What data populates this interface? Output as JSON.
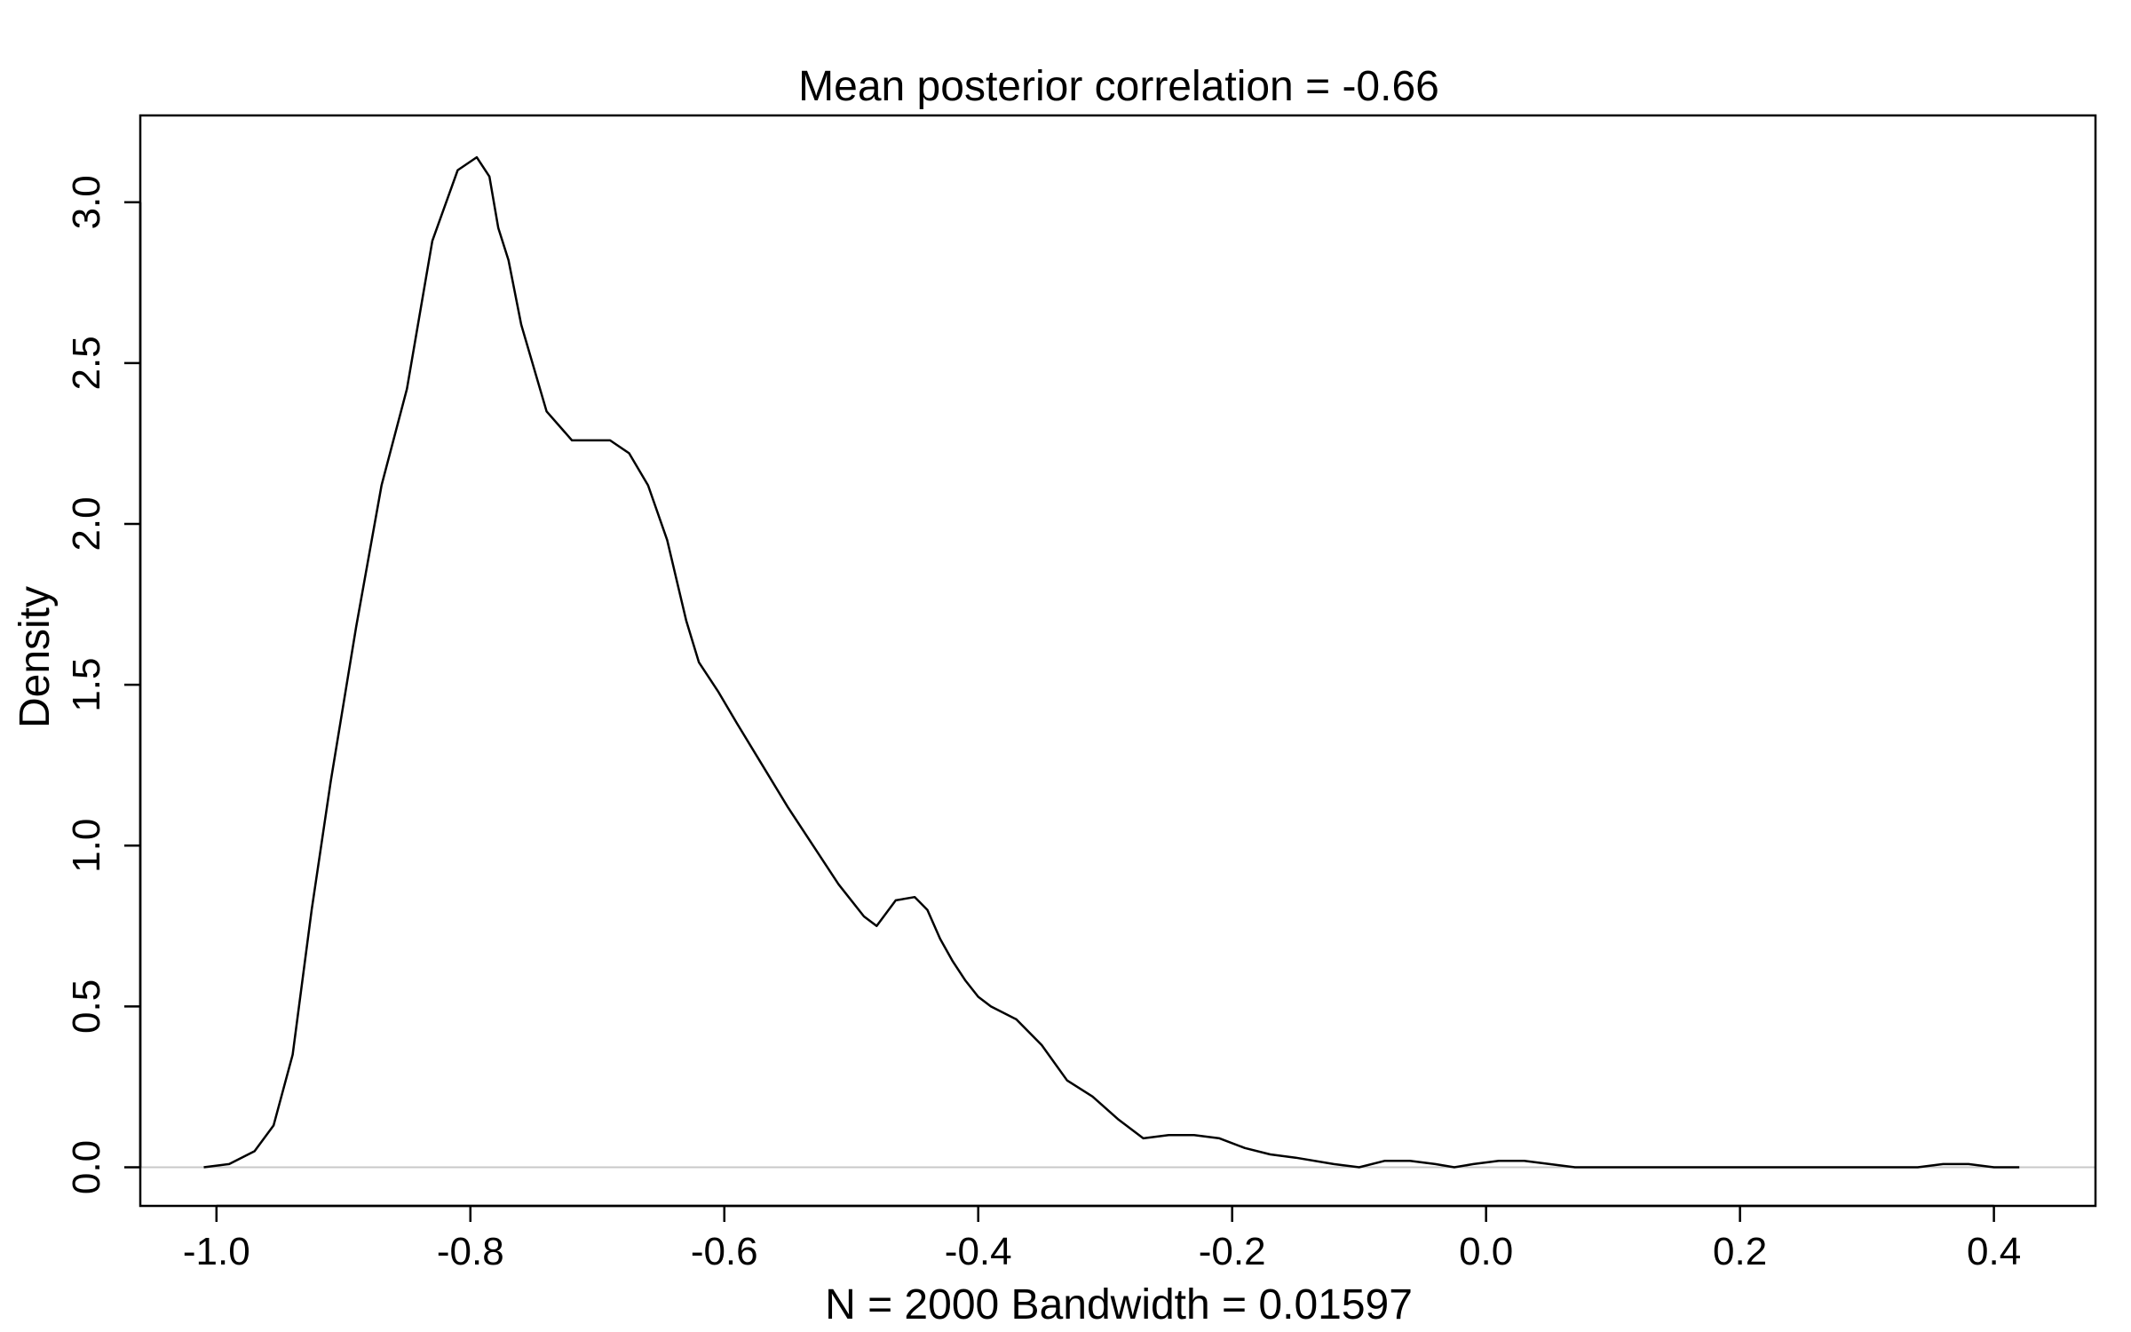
{
  "chart_data": {
    "type": "line",
    "title": "Mean posterior correlation = -0.66",
    "xlabel": "N = 2000   Bandwidth = 0.01597",
    "ylabel": "Density",
    "xlim": [
      -1.06,
      0.48
    ],
    "ylim": [
      -0.12,
      3.27
    ],
    "x_ticks": [
      -1.0,
      -0.8,
      -0.6,
      -0.4,
      -0.2,
      0.0,
      0.2,
      0.4
    ],
    "x_tick_labels": [
      "-1.0",
      "-0.8",
      "-0.6",
      "-0.4",
      "-0.2",
      "0.0",
      "0.2",
      "0.4"
    ],
    "y_ticks": [
      0.0,
      0.5,
      1.0,
      1.5,
      2.0,
      2.5,
      3.0
    ],
    "y_tick_labels": [
      "0.0",
      "0.5",
      "1.0",
      "1.5",
      "2.0",
      "2.5",
      "3.0"
    ],
    "baseline": 0,
    "grid": false,
    "legend": "none",
    "line_color": "#000000",
    "baseline_color": "#c8c8c8",
    "series": [
      {
        "x": [
          -1.01,
          -0.99,
          -0.97,
          -0.955,
          -0.94,
          -0.925,
          -0.91,
          -0.89,
          -0.87,
          -0.85,
          -0.83,
          -0.81,
          -0.795,
          -0.785,
          -0.778,
          -0.77,
          -0.76,
          -0.74,
          -0.72,
          -0.705,
          -0.69,
          -0.675,
          -0.66,
          -0.645,
          -0.63,
          -0.62,
          -0.605,
          -0.59,
          -0.57,
          -0.55,
          -0.53,
          -0.51,
          -0.49,
          -0.48,
          -0.465,
          -0.45,
          -0.44,
          -0.43,
          -0.42,
          -0.41,
          -0.4,
          -0.39,
          -0.37,
          -0.35,
          -0.33,
          -0.31,
          -0.29,
          -0.27,
          -0.25,
          -0.23,
          -0.21,
          -0.19,
          -0.17,
          -0.15,
          -0.12,
          -0.1,
          -0.08,
          -0.06,
          -0.04,
          -0.025,
          -0.01,
          0.01,
          0.03,
          0.05,
          0.07,
          0.1,
          0.15,
          0.2,
          0.25,
          0.3,
          0.34,
          0.36,
          0.38,
          0.4,
          0.42
        ],
        "y": [
          0.0,
          0.01,
          0.05,
          0.13,
          0.35,
          0.8,
          1.2,
          1.68,
          2.12,
          2.42,
          2.88,
          3.1,
          3.14,
          3.08,
          2.92,
          2.82,
          2.62,
          2.35,
          2.26,
          2.26,
          2.26,
          2.22,
          2.12,
          1.95,
          1.7,
          1.57,
          1.48,
          1.38,
          1.25,
          1.12,
          1.0,
          0.88,
          0.78,
          0.75,
          0.83,
          0.84,
          0.8,
          0.71,
          0.64,
          0.58,
          0.53,
          0.5,
          0.46,
          0.38,
          0.27,
          0.22,
          0.15,
          0.09,
          0.1,
          0.1,
          0.09,
          0.06,
          0.04,
          0.03,
          0.01,
          0.0,
          0.02,
          0.02,
          0.01,
          0.0,
          0.01,
          0.02,
          0.02,
          0.01,
          0.0,
          0.0,
          0.0,
          0.0,
          0.0,
          0.0,
          0.0,
          0.01,
          0.01,
          0.0,
          0.0
        ]
      }
    ]
  }
}
